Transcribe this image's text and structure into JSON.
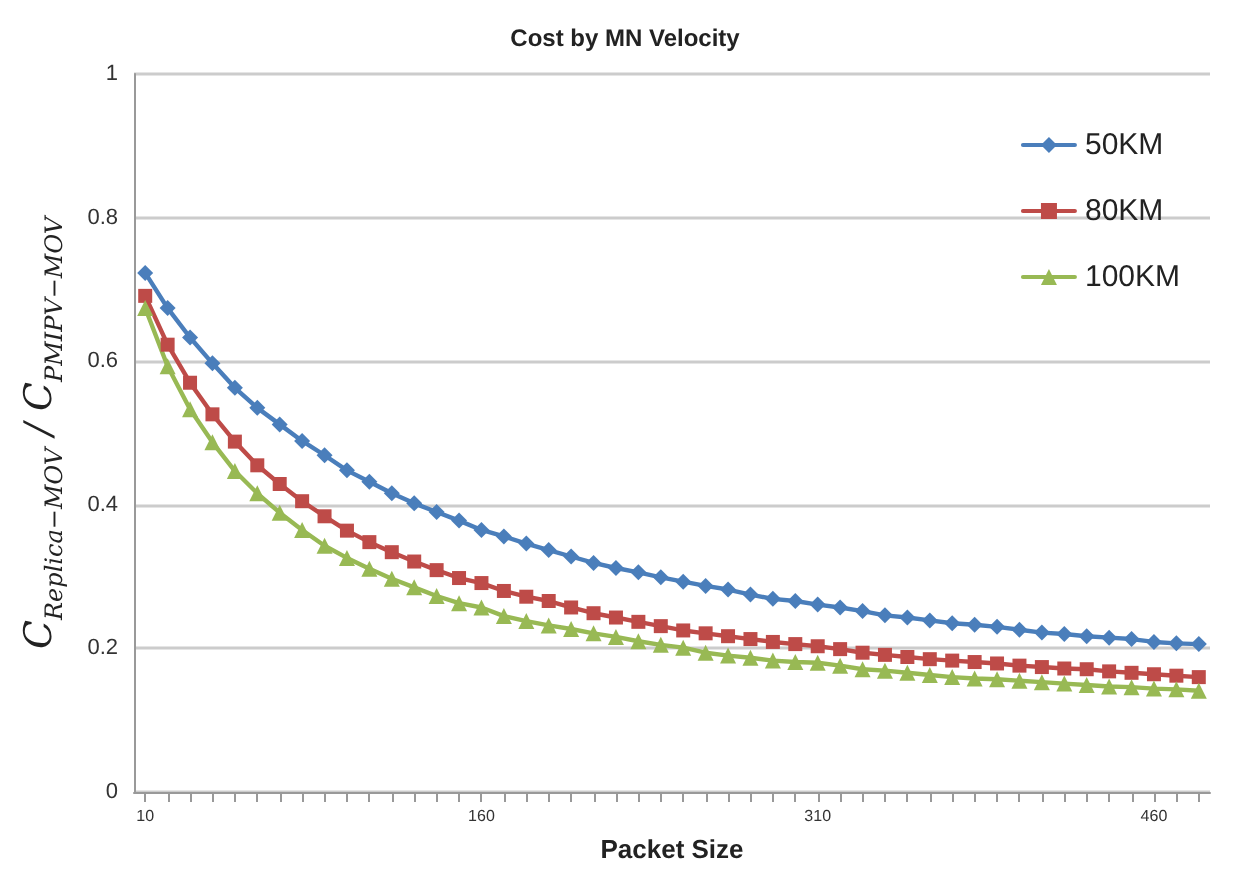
{
  "chart_data": {
    "type": "line",
    "title": "Cost by MN Velocity",
    "xlabel": "Packet Size",
    "ylabel": "C$_{Replica−MOV}$ / C$_{PMIPV−MOV}$",
    "categories": [
      "10",
      null,
      null,
      null,
      null,
      null,
      null,
      null,
      null,
      null,
      null,
      null,
      null,
      null,
      null,
      "160",
      null,
      null,
      null,
      null,
      null,
      null,
      null,
      null,
      null,
      null,
      null,
      null,
      null,
      null,
      "310",
      null,
      null,
      null,
      null,
      null,
      null,
      null,
      null,
      null,
      null,
      null,
      null,
      null,
      null,
      "460",
      null,
      null
    ],
    "series": [
      {
        "name": "50KM",
        "color": "#4a7ebb",
        "marker": "diamond",
        "values": [
          0.723,
          0.674,
          0.633,
          0.597,
          0.563,
          0.535,
          0.512,
          0.489,
          0.469,
          0.448,
          0.432,
          0.416,
          0.402,
          0.39,
          0.378,
          0.365,
          0.356,
          0.346,
          0.337,
          0.328,
          0.319,
          0.312,
          0.306,
          0.299,
          0.293,
          0.287,
          0.282,
          0.275,
          0.269,
          0.266,
          0.261,
          0.257,
          0.252,
          0.246,
          0.243,
          0.239,
          0.235,
          0.233,
          0.23,
          0.226,
          0.222,
          0.22,
          0.217,
          0.215,
          0.213,
          0.209,
          0.207,
          0.206
        ]
      },
      {
        "name": "80KM",
        "color": "#be4b48",
        "marker": "square",
        "values": [
          0.691,
          0.623,
          0.57,
          0.526,
          0.488,
          0.455,
          0.429,
          0.405,
          0.384,
          0.364,
          0.348,
          0.334,
          0.321,
          0.309,
          0.298,
          0.291,
          0.28,
          0.272,
          0.266,
          0.257,
          0.249,
          0.243,
          0.237,
          0.231,
          0.225,
          0.221,
          0.217,
          0.213,
          0.209,
          0.206,
          0.203,
          0.199,
          0.194,
          0.191,
          0.188,
          0.185,
          0.183,
          0.181,
          0.179,
          0.176,
          0.174,
          0.172,
          0.171,
          0.168,
          0.166,
          0.164,
          0.162,
          0.16
        ]
      },
      {
        "name": "100KM",
        "color": "#98b954",
        "marker": "triangle",
        "values": [
          0.674,
          0.593,
          0.533,
          0.487,
          0.447,
          0.416,
          0.389,
          0.365,
          0.343,
          0.326,
          0.311,
          0.297,
          0.285,
          0.273,
          0.263,
          0.257,
          0.245,
          0.238,
          0.232,
          0.227,
          0.221,
          0.216,
          0.21,
          0.205,
          0.201,
          0.194,
          0.19,
          0.187,
          0.183,
          0.181,
          0.18,
          0.176,
          0.171,
          0.169,
          0.166,
          0.163,
          0.16,
          0.158,
          0.157,
          0.155,
          0.153,
          0.151,
          0.149,
          0.147,
          0.146,
          0.144,
          0.143,
          0.141
        ]
      }
    ],
    "ylim": [
      0,
      1
    ],
    "yticks": [
      0,
      0.2,
      0.4,
      0.6,
      0.8,
      1
    ],
    "grid": "y",
    "legend": "top right",
    "line_style": "solid"
  }
}
